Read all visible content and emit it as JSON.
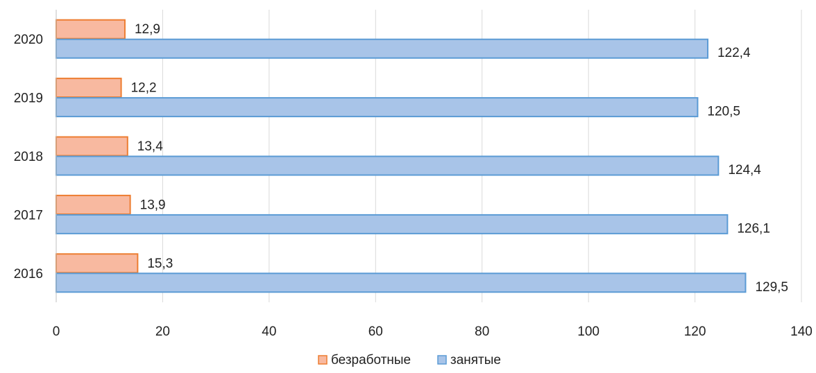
{
  "chart_data": {
    "type": "bar",
    "orientation": "horizontal",
    "categories": [
      "2016",
      "2017",
      "2018",
      "2019",
      "2020"
    ],
    "series": [
      {
        "name": "безработные",
        "values": [
          15.3,
          13.9,
          13.4,
          12.2,
          12.9
        ],
        "labels": [
          "15,3",
          "13,9",
          "13,4",
          "12,2",
          "12,9"
        ],
        "fill": "#f8b9a0",
        "stroke": "#ed7d31"
      },
      {
        "name": "занятые",
        "values": [
          129.5,
          126.1,
          124.4,
          120.5,
          122.4
        ],
        "labels": [
          "129,5",
          "126,1",
          "124,4",
          "120,5",
          "122,4"
        ],
        "fill": "#a8c4e8",
        "stroke": "#5b9bd5"
      }
    ],
    "xlim": [
      0,
      140
    ],
    "xticks": [
      0,
      20,
      40,
      60,
      80,
      100,
      120,
      140
    ],
    "grid": "vertical",
    "gridline_color": "#d9d9d9",
    "legend_position": "bottom"
  }
}
